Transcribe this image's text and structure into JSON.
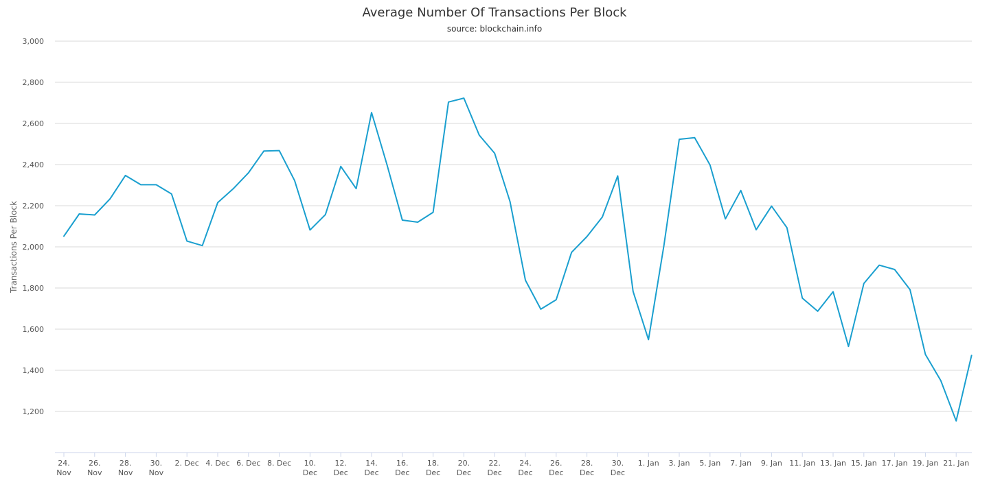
{
  "chart_data": {
    "type": "line",
    "title": "Average Number Of Transactions Per Block",
    "subtitle": "source: blockchain.info",
    "xlabel": "",
    "ylabel": "Transactions Per Block",
    "ylim": [
      1000,
      3000
    ],
    "yticks": [
      1200,
      1400,
      1600,
      1800,
      2000,
      2200,
      2400,
      2600,
      2800,
      3000
    ],
    "ytick_labels": [
      "1,200",
      "1,400",
      "1,600",
      "1,800",
      "2,000",
      "2,200",
      "2,400",
      "2,600",
      "2,800",
      "3,000"
    ],
    "grid": true,
    "legend": "none",
    "x": [
      "24. Nov",
      "25. Nov",
      "26. Nov",
      "27. Nov",
      "28. Nov",
      "29. Nov",
      "30. Nov",
      "1. Dec",
      "2. Dec",
      "3. Dec",
      "4. Dec",
      "5. Dec",
      "6. Dec",
      "7. Dec",
      "8. Dec",
      "9. Dec",
      "10. Dec",
      "11. Dec",
      "12. Dec",
      "13. Dec",
      "14. Dec",
      "15. Dec",
      "16. Dec",
      "17. Dec",
      "18. Dec",
      "19. Dec",
      "20. Dec",
      "21. Dec",
      "22. Dec",
      "23. Dec",
      "24. Dec",
      "25. Dec",
      "26. Dec",
      "27. Dec",
      "28. Dec",
      "29. Dec",
      "30. Dec",
      "31. Dec",
      "1. Jan",
      "2. Jan",
      "3. Jan",
      "4. Jan",
      "5. Jan",
      "6. Jan",
      "7. Jan",
      "8. Jan",
      "9. Jan",
      "10. Jan",
      "11. Jan",
      "12. Jan",
      "13. Jan",
      "14. Jan",
      "15. Jan",
      "16. Jan",
      "17. Jan",
      "18. Jan",
      "19. Jan",
      "20. Jan",
      "21. Jan",
      "22. Jan"
    ],
    "xtick_labels": [
      [
        "24.",
        "Nov"
      ],
      [
        "26.",
        "Nov"
      ],
      [
        "28.",
        "Nov"
      ],
      [
        "30.",
        "Nov"
      ],
      [
        "2. Dec"
      ],
      [
        "4. Dec"
      ],
      [
        "6. Dec"
      ],
      [
        "8. Dec"
      ],
      [
        "10.",
        "Dec"
      ],
      [
        "12.",
        "Dec"
      ],
      [
        "14.",
        "Dec"
      ],
      [
        "16.",
        "Dec"
      ],
      [
        "18.",
        "Dec"
      ],
      [
        "20.",
        "Dec"
      ],
      [
        "22.",
        "Dec"
      ],
      [
        "24.",
        "Dec"
      ],
      [
        "26.",
        "Dec"
      ],
      [
        "28.",
        "Dec"
      ],
      [
        "30.",
        "Dec"
      ],
      [
        "1. Jan"
      ],
      [
        "3. Jan"
      ],
      [
        "5. Jan"
      ],
      [
        "7. Jan"
      ],
      [
        "9. Jan"
      ],
      [
        "11. Jan"
      ],
      [
        "13. Jan"
      ],
      [
        "15. Jan"
      ],
      [
        "17. Jan"
      ],
      [
        "19. Jan"
      ],
      [
        "21. Jan"
      ]
    ],
    "series": [
      {
        "values": [
          2052,
          2160,
          2155,
          2233,
          2347,
          2302,
          2302,
          2257,
          2028,
          2006,
          2215,
          2282,
          2360,
          2466,
          2468,
          2322,
          2082,
          2157,
          2391,
          2283,
          2653,
          2400,
          2130,
          2120,
          2168,
          2704,
          2723,
          2543,
          2455,
          2220,
          1838,
          1697,
          1743,
          1973,
          2050,
          2145,
          2345,
          1783,
          1549,
          2005,
          2523,
          2531,
          2398,
          2136,
          2274,
          2083,
          2198,
          2093,
          1751,
          1687,
          1782,
          1516,
          1822,
          1911,
          1890,
          1792,
          1477,
          1350,
          1154,
          1472
        ],
        "color": "#1a9fcf"
      }
    ]
  }
}
